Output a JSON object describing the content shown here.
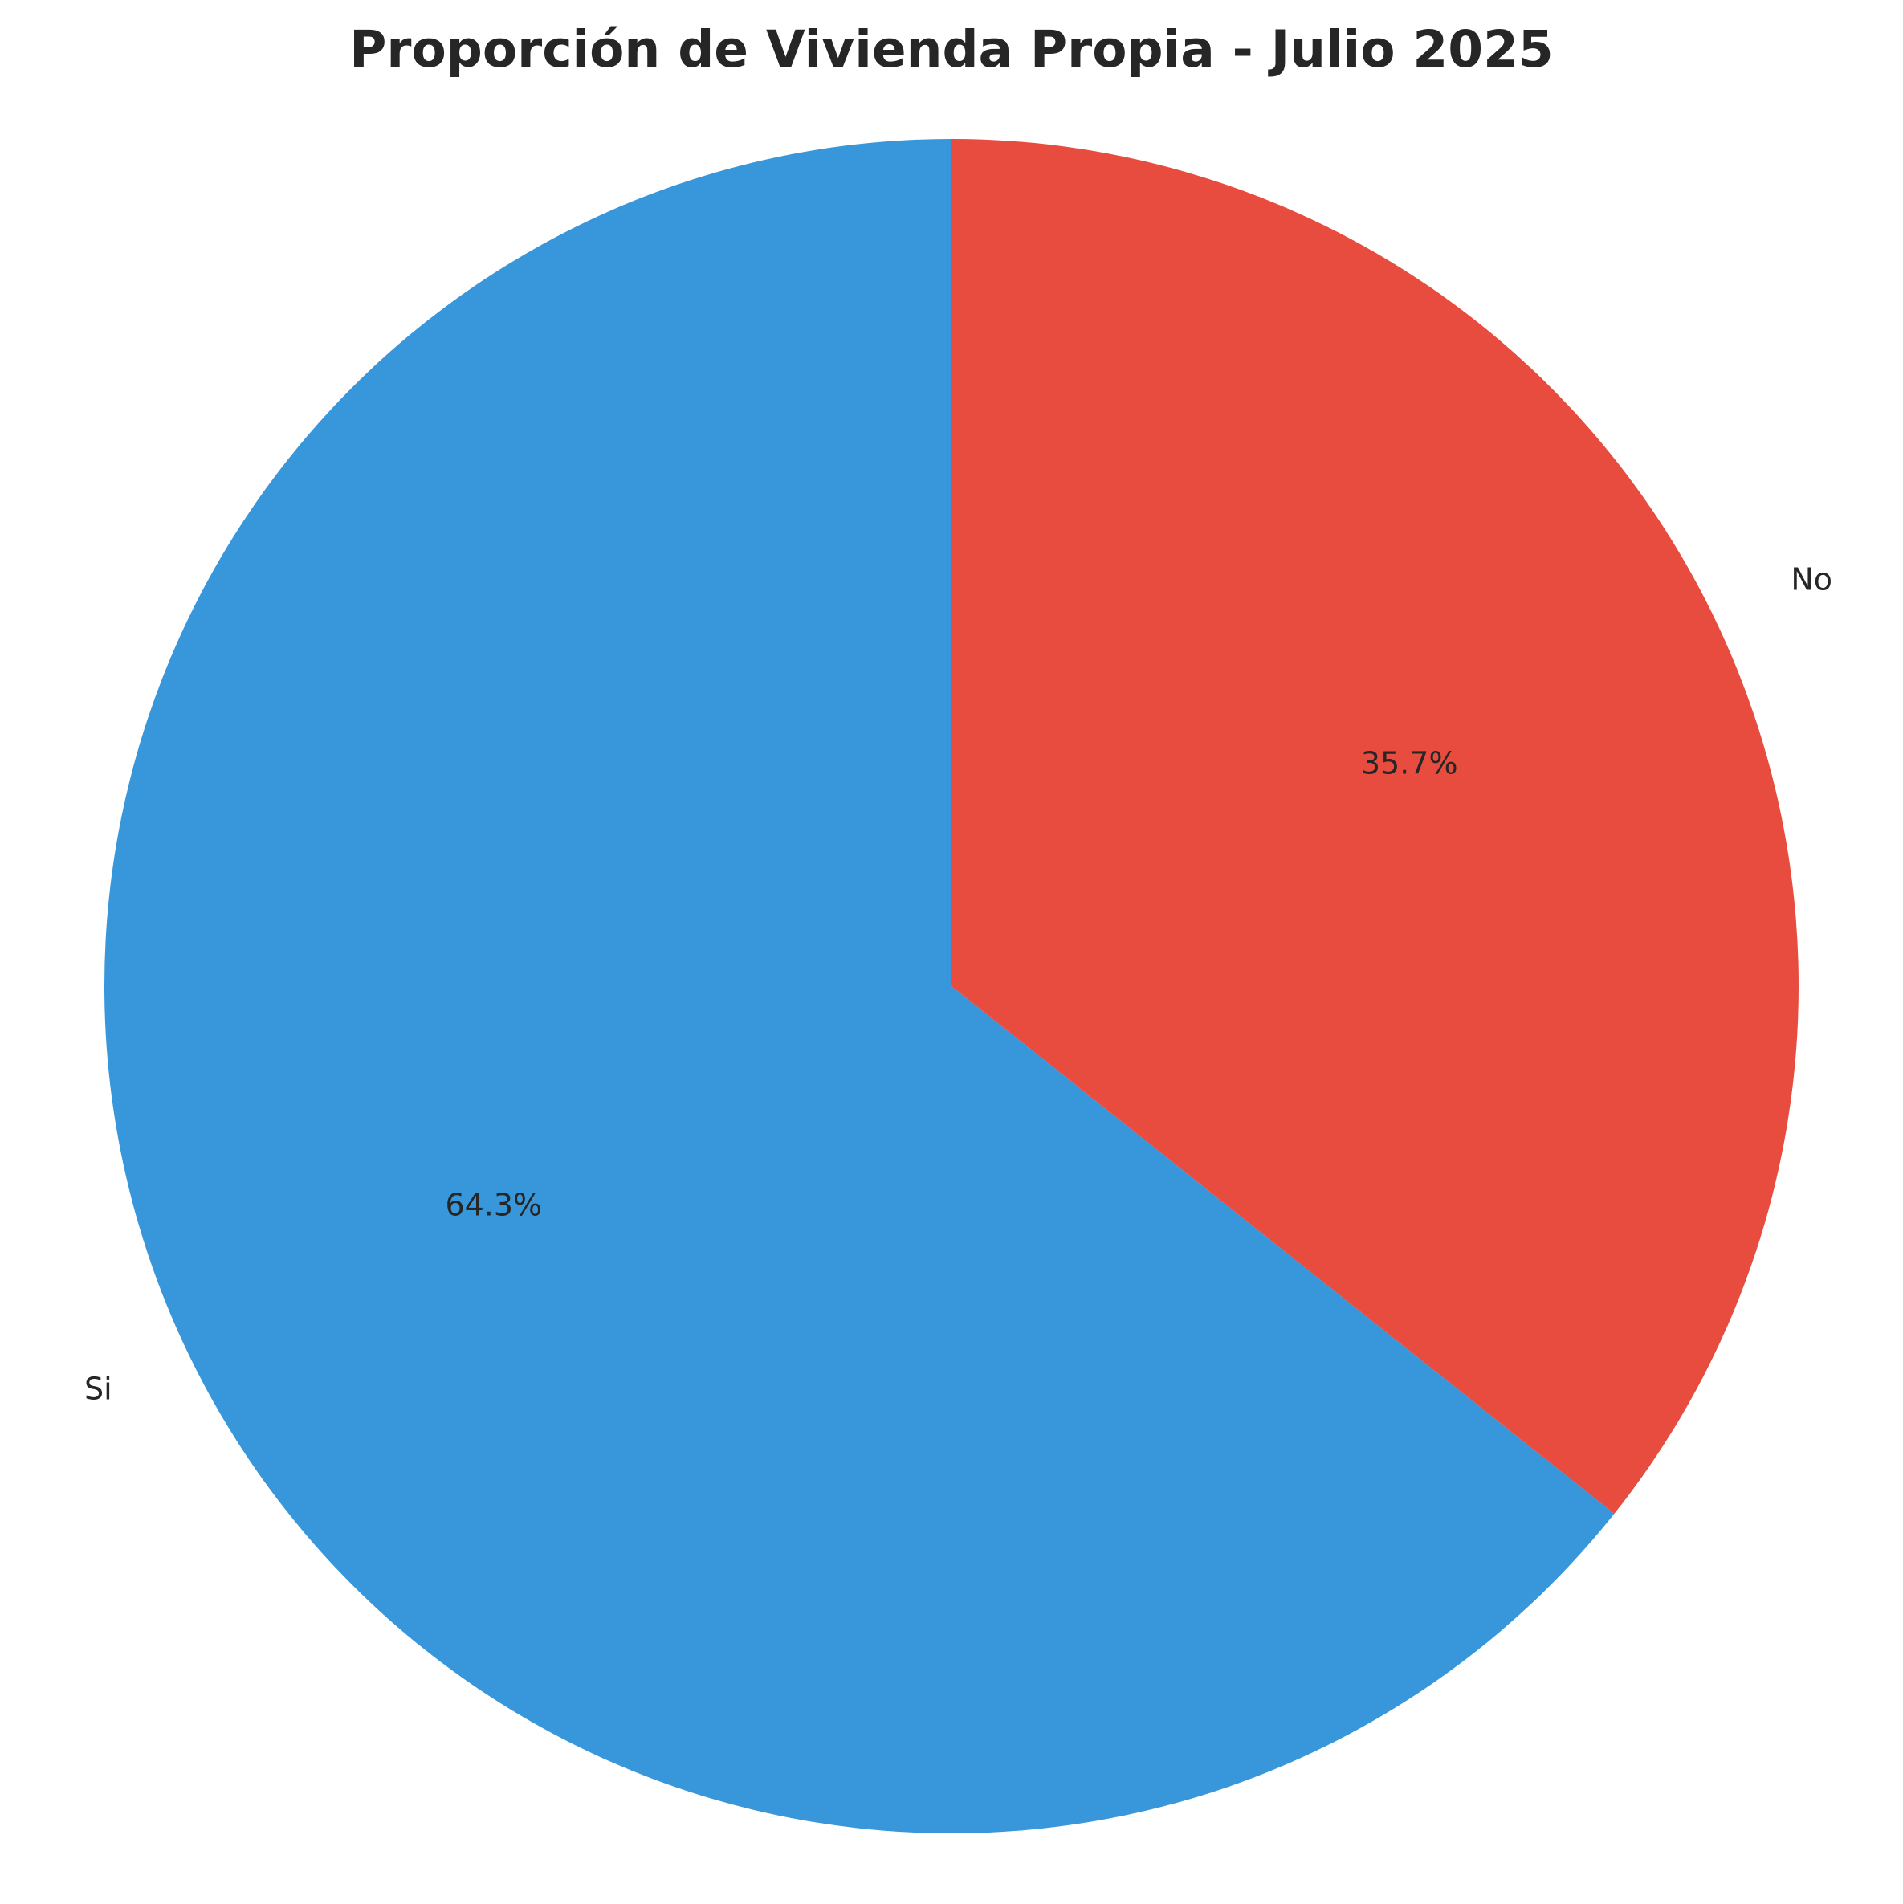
{
  "chart_data": {
    "type": "pie",
    "title": "Proporción de Vivienda Propia - Julio 2025",
    "labels": [
      "Si",
      "No"
    ],
    "values": [
      64.3,
      35.7
    ],
    "percent_labels": [
      "64.3%",
      "35.7%"
    ],
    "colors": [
      "#3897DA",
      "#E74C3F"
    ],
    "start_angle_deg": 90,
    "direction": "counterclockwise"
  }
}
